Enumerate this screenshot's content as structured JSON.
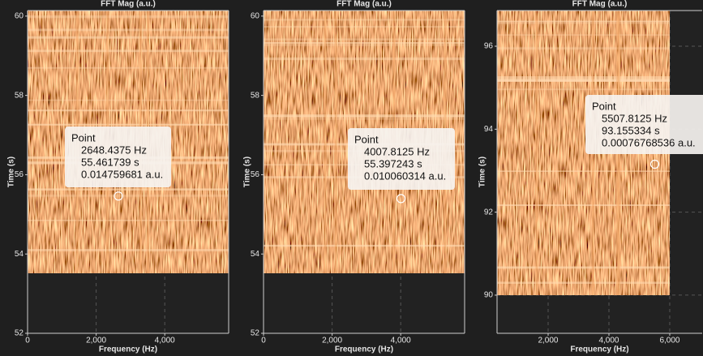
{
  "chart_data": [
    {
      "type": "spectrogram",
      "title": "FFT Mag (a.u.)",
      "x_label": "Frequency (Hz)",
      "y_label": "Time (s)",
      "xlim": [
        0,
        5863
      ],
      "ylim": [
        52,
        60.14
      ],
      "xticks": [
        0,
        {
          "value": 2000,
          "label": "2,000"
        },
        {
          "value": 4000,
          "label": "4,000"
        }
      ],
      "yticks": [
        52,
        54,
        56,
        58,
        60
      ],
      "grid": true,
      "point": {
        "name": "Point",
        "x": 2648.4375,
        "y": 55.461739,
        "z": 0.014759681,
        "value_labels": [
          "2648.4375 Hz",
          "55.461739 s",
          "0.014759681 a.u."
        ]
      }
    },
    {
      "type": "spectrogram",
      "title": "FFT Mag (a.u.)",
      "x_label": "Frequency (Hz)",
      "y_label": "Time (s)",
      "xlim": [
        0,
        5863
      ],
      "ylim": [
        52,
        60.14
      ],
      "xticks": [
        0,
        {
          "value": 2000,
          "label": "2,000"
        },
        {
          "value": 4000,
          "label": "4,000"
        }
      ],
      "yticks": [
        52,
        54,
        56,
        58,
        60
      ],
      "grid": true,
      "point": {
        "name": "Point",
        "x": 4007.8125,
        "y": 55.397243,
        "z": 0.010060314,
        "value_labels": [
          "4007.8125 Hz",
          "55.397243 s",
          "0.010060314 a.u."
        ]
      }
    },
    {
      "type": "spectrogram",
      "title": "FFT Mag (a.u.)",
      "x_label": "Frequency (Hz)",
      "y_label": "Time (s)",
      "xlim": [
        320,
        7067
      ],
      "ylim": [
        89.08,
        96.86
      ],
      "xticks": [
        {
          "value": 2000,
          "label": "2,000"
        },
        {
          "value": 4000,
          "label": "4,000"
        },
        {
          "value": 6000,
          "label": "6,000"
        }
      ],
      "yticks": [
        90,
        92,
        94,
        96
      ],
      "grid": true,
      "point": {
        "name": "Point",
        "x": 5507.8125,
        "y": 93.155334,
        "z": 0.00076768536,
        "value_labels": [
          "5507.8125 Hz",
          "93.155334 s",
          "0.00076768536 a.u."
        ]
      }
    }
  ]
}
